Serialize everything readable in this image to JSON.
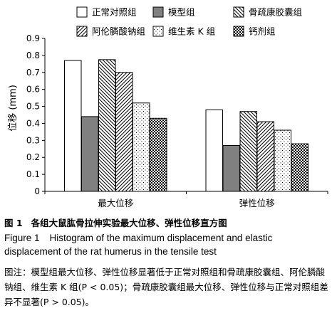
{
  "chart_data": {
    "type": "bar",
    "ylabel": "位移 (mm)",
    "ylim": [
      0,
      0.9
    ],
    "yticks": [
      "0",
      "0.1",
      "0.2",
      "0.3",
      "0.4",
      "0.5",
      "0.6",
      "0.7",
      "0.8",
      "0.9"
    ],
    "categories": [
      "最大位移",
      "弹性位移"
    ],
    "legend_position": "top",
    "series": [
      {
        "name": "正常对照组",
        "values": [
          0.77,
          0.48
        ],
        "pattern": "white"
      },
      {
        "name": "模型组",
        "values": [
          0.44,
          0.27
        ],
        "pattern": "gray"
      },
      {
        "name": "骨疏康胶囊组",
        "values": [
          0.775,
          0.47
        ],
        "pattern": "back-diagonal"
      },
      {
        "name": "阿伦膦酸钠组",
        "values": [
          0.7,
          0.41
        ],
        "pattern": "forward-diagonal"
      },
      {
        "name": "维生素 K 组",
        "values": [
          0.52,
          0.36
        ],
        "pattern": "dots"
      },
      {
        "name": "钙剂组",
        "values": [
          0.43,
          0.28
        ],
        "pattern": "checker"
      }
    ]
  },
  "caption": {
    "cn_label": "图 1",
    "cn_title": "各组大鼠肱骨拉伸实验最大位移、弹性位移直方图",
    "en_label": "Figure 1",
    "en_title": "Histogram of the maximum displacement and elastic displacement of the rat humerus in the tensile test",
    "note": "图注：模型组最大位移、弹性位移显著低于正常对照组和骨疏康胶囊组、阿伦膦酸钠组、维生素 K 组(P < 0.05)；骨疏康胶囊组最大位移、弹性位移与正常对照组差异不显著(P > 0.05)。"
  }
}
